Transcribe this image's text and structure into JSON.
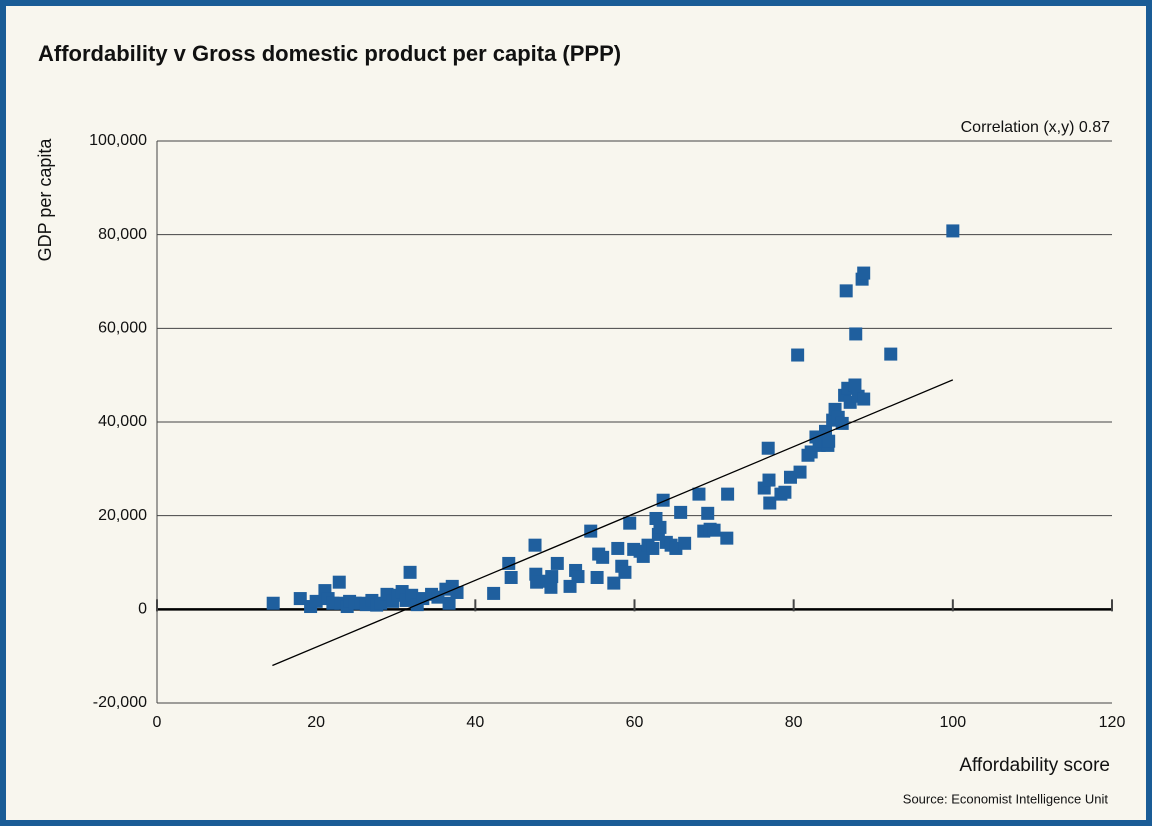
{
  "chart_data": {
    "type": "scatter",
    "title": "Affordability v Gross domestic product per capita (PPP)",
    "annotation": "Correlation (x,y) 0.87",
    "x_label": "Affordability score",
    "y_label": "GDP per capita",
    "source": "Source: Economist Intelligence Unit",
    "xlim": [
      0,
      120
    ],
    "xticks": [
      0,
      20,
      40,
      60,
      80,
      100,
      120
    ],
    "ylim": [
      -20000,
      100000
    ],
    "yticks": [
      {
        "value": -20000,
        "label": "-20,000"
      },
      0,
      {
        "value": 20000,
        "label": "20,000"
      },
      {
        "value": 40000,
        "label": "40,000"
      },
      {
        "value": 60000,
        "label": "60,000"
      },
      {
        "value": 80000,
        "label": "80,000"
      },
      {
        "value": 100000,
        "label": "100,000"
      }
    ],
    "grid": true,
    "x": [
      14.6,
      18,
      19.3,
      20,
      21.1,
      21.5,
      22.1,
      22.9,
      23.1,
      23.9,
      24.2,
      24.9,
      25.6,
      26.3,
      27,
      27.6,
      28.1,
      28.9,
      29.6,
      30.3,
      30.8,
      31.3,
      31.8,
      32,
      32.7,
      33.4,
      34.5,
      35.3,
      36.3,
      36.7,
      37.1,
      37.7,
      42.3,
      44.2,
      44.5,
      47.5,
      47.6,
      47.7,
      49,
      49.5,
      49.6,
      50.3,
      51.9,
      52.6,
      52.9,
      54.5,
      55.3,
      55.5,
      56,
      57.4,
      57.9,
      58.4,
      58.8,
      59.4,
      59.9,
      60.7,
      61.1,
      61.7,
      62.3,
      62.7,
      63,
      63.2,
      63.6,
      64,
      64.6,
      65.2,
      65.8,
      66.3,
      68.1,
      68.7,
      69.2,
      69.5,
      70,
      71.6,
      71.7,
      76.3,
      76.8,
      76.9,
      77,
      78.4,
      78.9,
      79.6,
      80.5,
      80.8,
      81.8,
      82.2,
      82.8,
      83.2,
      83.6,
      84,
      84.3,
      84.4,
      84.9,
      85.2,
      85.6,
      86.1,
      86.4,
      86.6,
      86.8,
      87.1,
      87.7,
      87.8,
      88.1,
      88.6,
      88.8,
      88.8,
      92.2,
      100
    ],
    "series": [
      {
        "color": "#1f5f9e",
        "values": [
          1300,
          2300,
          600,
          1700,
          4000,
          2300,
          1300,
          5800,
          1300,
          600,
          1700,
          1300,
          1300,
          1000,
          1900,
          900,
          1300,
          3200,
          1700,
          3000,
          3800,
          1900,
          7900,
          3000,
          1000,
          2300,
          3200,
          2600,
          4300,
          1300,
          4900,
          3600,
          3400,
          9800,
          6800,
          13700,
          7500,
          5800,
          6000,
          4700,
          7000,
          9800,
          4900,
          8300,
          7000,
          16700,
          6800,
          11800,
          11100,
          5600,
          13000,
          9200,
          7900,
          18400,
          12800,
          12400,
          11300,
          13700,
          13000,
          19400,
          16000,
          17500,
          23300,
          14300,
          13700,
          13000,
          20700,
          14100,
          24600,
          16700,
          20500,
          17100,
          16900,
          15200,
          24600,
          25900,
          34400,
          27600,
          22700,
          24600,
          25000,
          28200,
          54300,
          29300,
          32900,
          33600,
          36800,
          35000,
          35900,
          38000,
          35000,
          35900,
          40400,
          42700,
          41000,
          39700,
          45700,
          68000,
          47200,
          44200,
          47900,
          58800,
          45500,
          70500,
          71800,
          44900,
          54500,
          80800
        ]
      }
    ],
    "trendline": {
      "color": "#000000",
      "x": [
        14.5,
        100
      ],
      "values": [
        -12000,
        49000
      ]
    }
  }
}
